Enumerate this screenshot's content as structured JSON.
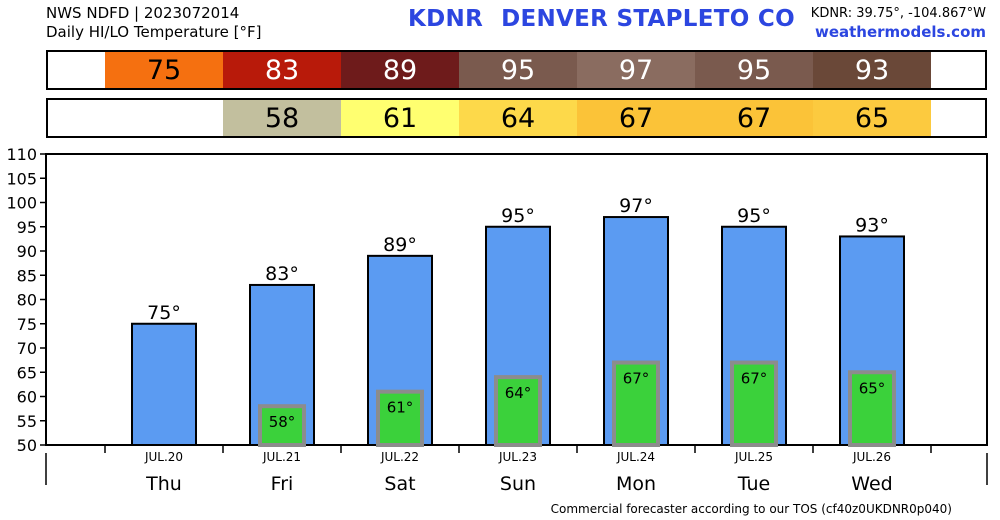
{
  "header": {
    "line1": "NWS NDFD | 2023072014",
    "line2": "Daily HI/LO Temperature [°F]",
    "station_id": "KDNR",
    "station_name": "DENVER STAPLETO CO",
    "coords": "KDNR: 39.75°, -104.867°W",
    "site": "weathermodels.com"
  },
  "strips": {
    "hi": [
      {
        "day_index": 0,
        "value": "75",
        "bg": "#f57010",
        "fg": "#000000"
      },
      {
        "day_index": 1,
        "value": "83",
        "bg": "#b81a0a",
        "fg": "#ffffff"
      },
      {
        "day_index": 2,
        "value": "89",
        "bg": "#6e1b1b",
        "fg": "#ffffff"
      },
      {
        "day_index": 3,
        "value": "95",
        "bg": "#7a5a4e",
        "fg": "#ffffff"
      },
      {
        "day_index": 4,
        "value": "97",
        "bg": "#8a6c60",
        "fg": "#ffffff"
      },
      {
        "day_index": 5,
        "value": "95",
        "bg": "#7a5a4e",
        "fg": "#ffffff"
      },
      {
        "day_index": 6,
        "value": "93",
        "bg": "#6a4838",
        "fg": "#ffffff"
      }
    ],
    "lo": [
      {
        "day_index": 1,
        "value": "58",
        "bg": "#c2bf9e",
        "fg": "#000000"
      },
      {
        "day_index": 2,
        "value": "61",
        "bg": "#ffff70",
        "fg": "#000000"
      },
      {
        "day_index": 3,
        "value": "64",
        "bg": "#fdd94a",
        "fg": "#000000"
      },
      {
        "day_index": 4,
        "value": "67",
        "bg": "#fbc338",
        "fg": "#000000"
      },
      {
        "day_index": 5,
        "value": "67",
        "bg": "#fbc338",
        "fg": "#000000"
      },
      {
        "day_index": 6,
        "value": "65",
        "bg": "#fcca3f",
        "fg": "#000000"
      }
    ]
  },
  "chart_data": {
    "type": "bar",
    "categories": [
      "Thu",
      "Fri",
      "Sat",
      "Sun",
      "Mon",
      "Tue",
      "Wed"
    ],
    "dates": [
      "JUL.20",
      "JUL.21",
      "JUL.22",
      "JUL.23",
      "JUL.24",
      "JUL.25",
      "JUL.26"
    ],
    "series": [
      {
        "values": [
          75,
          83,
          89,
          95,
          97,
          95,
          93
        ],
        "labels": [
          "75°",
          "83°",
          "89°",
          "95°",
          "97°",
          "95°",
          "93°"
        ],
        "color": "#5b9bf2"
      },
      {
        "values": [
          null,
          58,
          61,
          64,
          67,
          67,
          65
        ],
        "labels": [
          "",
          "58°",
          "61°",
          "64°",
          "67°",
          "67°",
          "65°"
        ],
        "color": "#3bd13b"
      }
    ],
    "ylim": [
      50,
      110
    ],
    "yticks": [
      50,
      55,
      60,
      65,
      70,
      75,
      80,
      85,
      90,
      95,
      100,
      105,
      110
    ],
    "ytick_labels": [
      "50",
      "55",
      "60",
      "65",
      "70",
      "75",
      "80",
      "85",
      "90",
      "95",
      "100",
      "105",
      "110"
    ],
    "grid": false
  },
  "footer": "Commercial forecaster according to our TOS (cf40z0UKDNR0p040)"
}
